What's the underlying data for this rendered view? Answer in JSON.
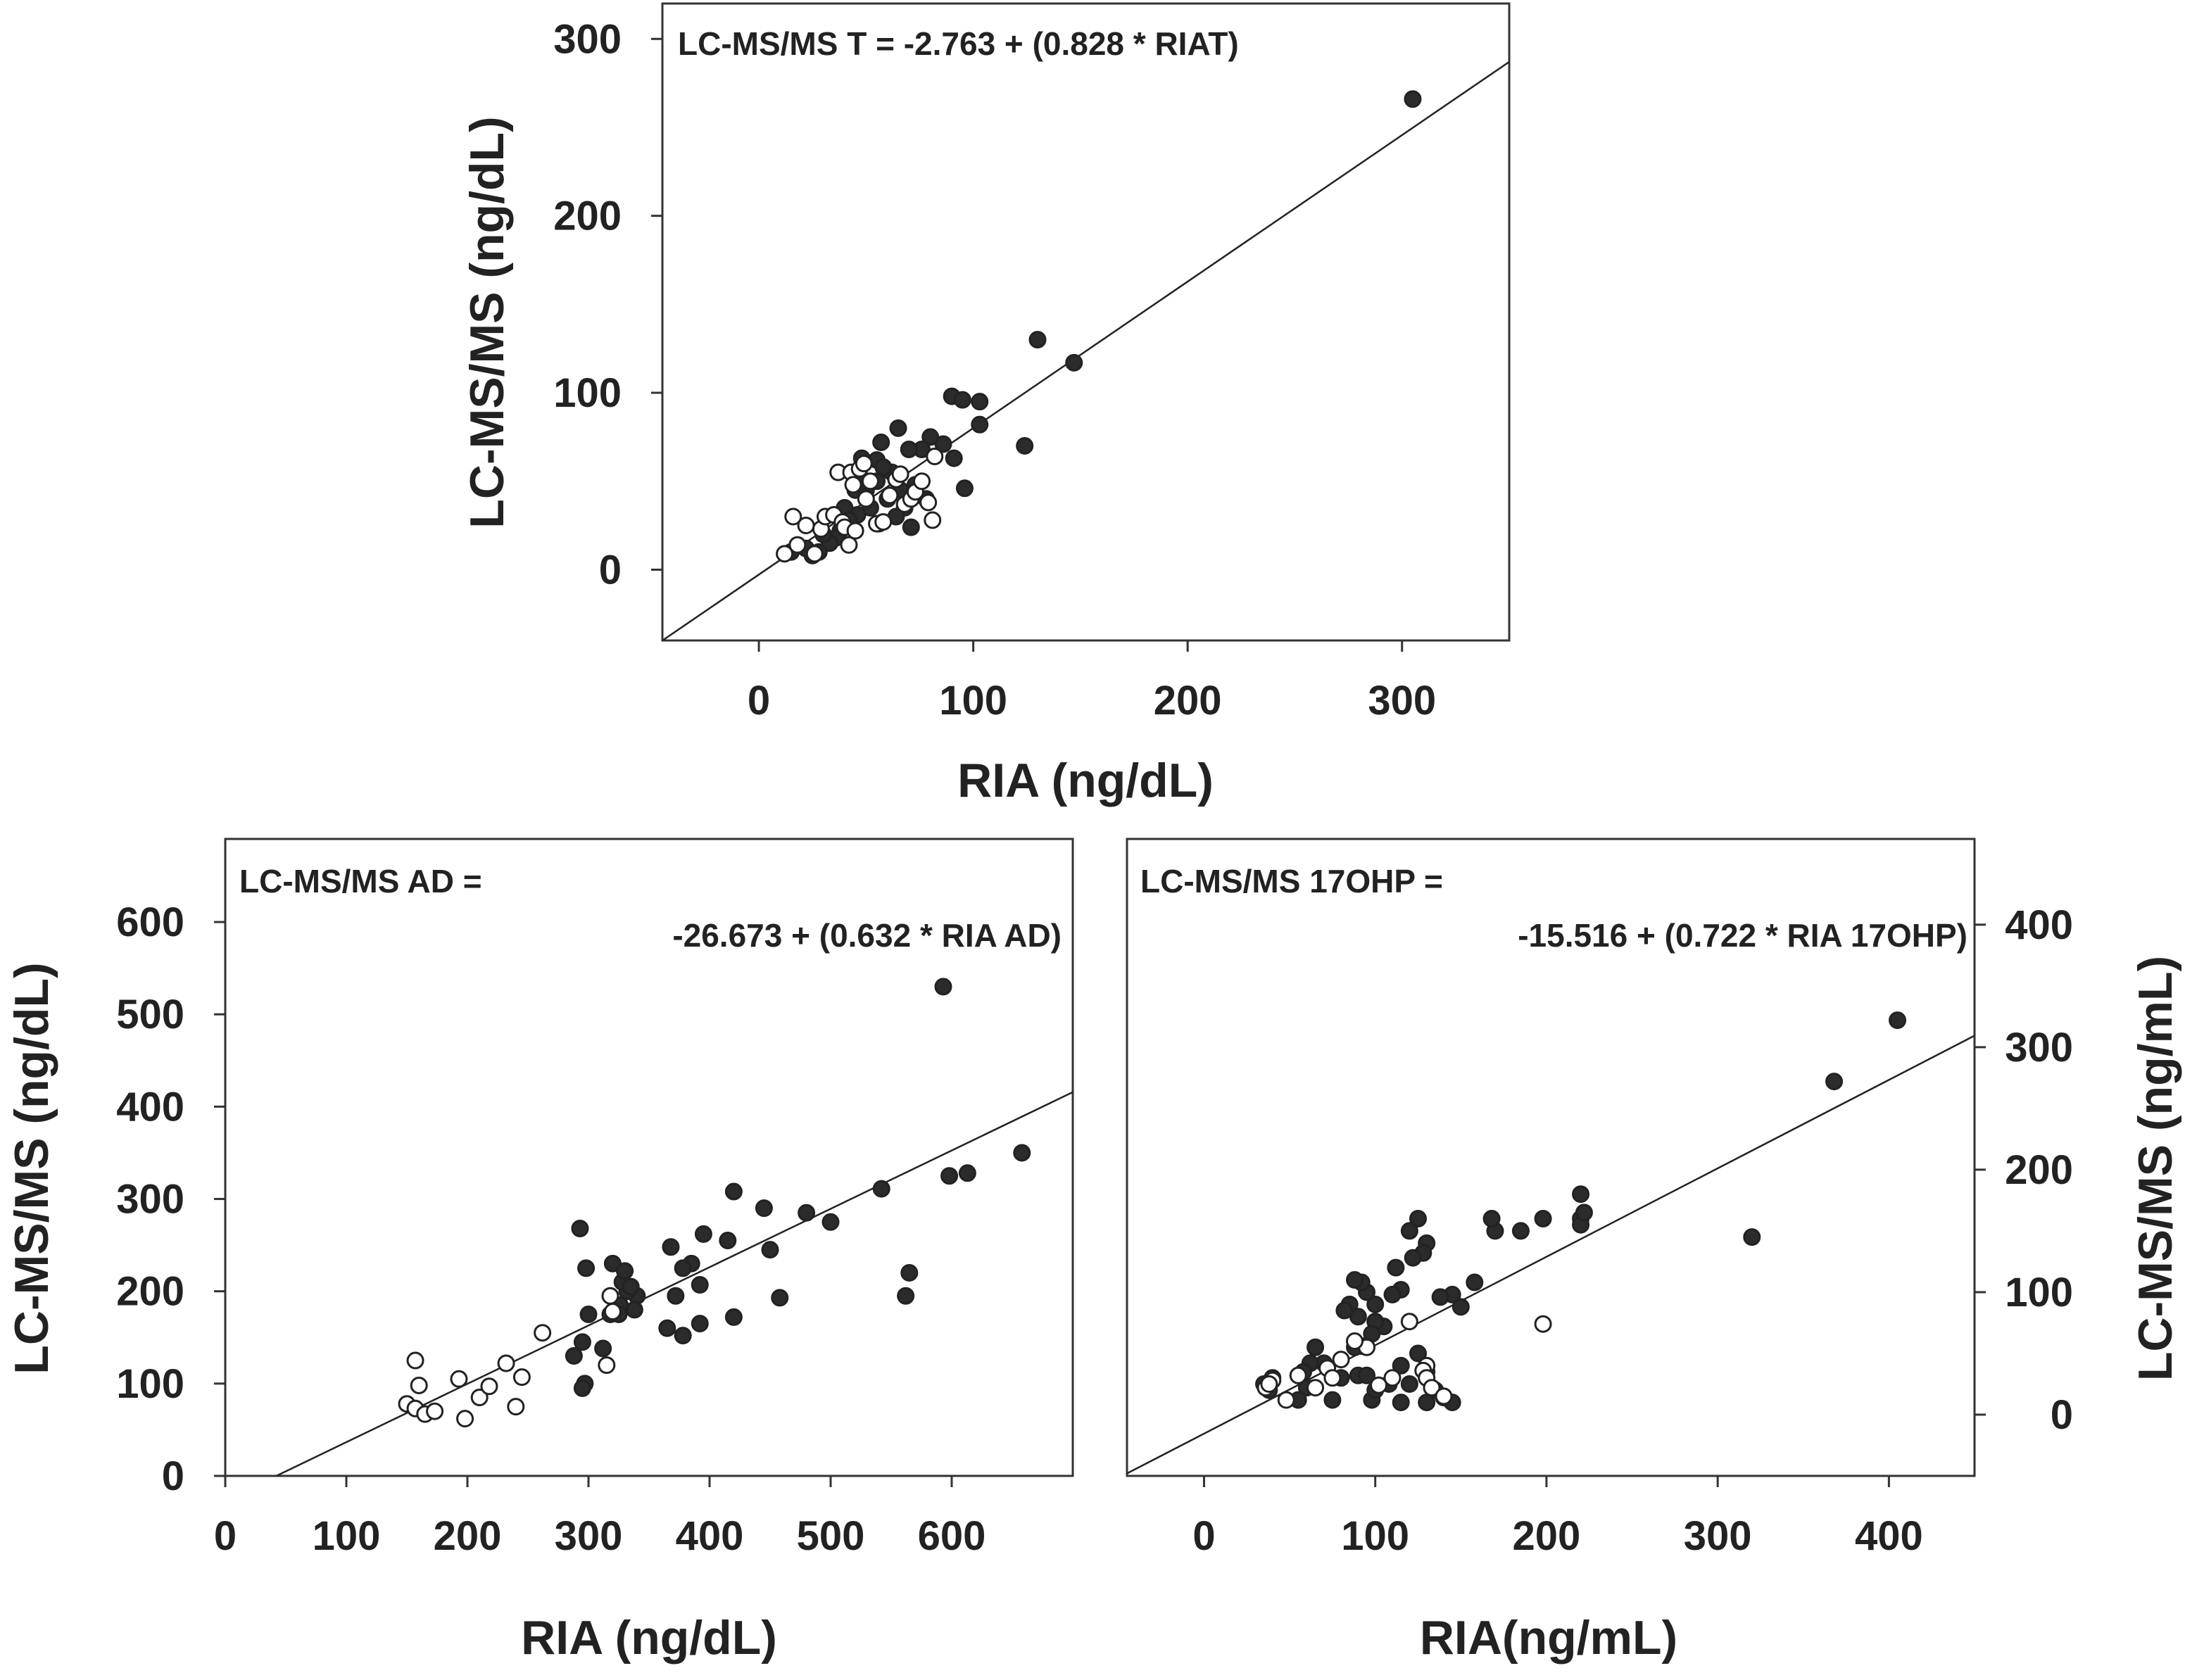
{
  "colors": {
    "filled": "#2b2b2b",
    "open": "#ffffff",
    "line": "#222222"
  },
  "chart_data": [
    {
      "id": "T",
      "type": "scatter",
      "title": "LC-MS/MS T = -2.763 + (0.828 * RIAT)",
      "equation_lines": [
        "LC-MS/MS T = -2.763 + (0.828 * RIAT)"
      ],
      "xlabel": "RIA (ng/dL)",
      "ylabel": "LC-MS/MS (ng/dL)",
      "xlim": [
        -45,
        350
      ],
      "ylim": [
        -40,
        320
      ],
      "xticks": [
        0,
        100,
        200,
        300
      ],
      "yticks": [
        0,
        100,
        200,
        300
      ],
      "yaxis_side": "left",
      "fit": {
        "intercept": -2.763,
        "slope": 0.828
      },
      "series": [
        {
          "name": "filled",
          "style": "filled",
          "points": [
            [
              305,
              266
            ],
            [
              130,
              130
            ],
            [
              147,
              117
            ],
            [
              124,
              70
            ],
            [
              96,
              46
            ],
            [
              90,
              98
            ],
            [
              95,
              96
            ],
            [
              103,
              95
            ],
            [
              103,
              82
            ],
            [
              91,
              63
            ],
            [
              86,
              71
            ],
            [
              80,
              75
            ],
            [
              76,
              68
            ],
            [
              70,
              68
            ],
            [
              65,
              80
            ],
            [
              57,
              72
            ],
            [
              55,
              62
            ],
            [
              48,
              63
            ],
            [
              45,
              45
            ],
            [
              40,
              35
            ],
            [
              50,
              45
            ],
            [
              55,
              50
            ],
            [
              60,
              40
            ],
            [
              62,
              55
            ],
            [
              66,
              45
            ],
            [
              68,
              35
            ],
            [
              71,
              24
            ],
            [
              64,
              30
            ],
            [
              56,
              26
            ],
            [
              52,
              35
            ],
            [
              46,
              31
            ],
            [
              42,
              28
            ],
            [
              38,
              22
            ],
            [
              36,
              18
            ],
            [
              33,
              15
            ],
            [
              28,
              10
            ],
            [
              25,
              8
            ],
            [
              22,
              12
            ],
            [
              15,
              10
            ],
            [
              30,
              20
            ],
            [
              48,
              50
            ],
            [
              58,
              58
            ],
            [
              73,
              48
            ],
            [
              78,
              40
            ]
          ]
        },
        {
          "name": "open",
          "style": "open",
          "points": [
            [
              12,
              9
            ],
            [
              18,
              14
            ],
            [
              16,
              30
            ],
            [
              22,
              25
            ],
            [
              26,
              9
            ],
            [
              29,
              23
            ],
            [
              31,
              30
            ],
            [
              35,
              31
            ],
            [
              37,
              55
            ],
            [
              39,
              27
            ],
            [
              40,
              24
            ],
            [
              42,
              14
            ],
            [
              43,
              55
            ],
            [
              45,
              22
            ],
            [
              47,
              57
            ],
            [
              49,
              60
            ],
            [
              52,
              50
            ],
            [
              55,
              26
            ],
            [
              58,
              27
            ],
            [
              61,
              42
            ],
            [
              64,
              51
            ],
            [
              68,
              37
            ],
            [
              71,
              40
            ],
            [
              73,
              44
            ],
            [
              76,
              50
            ],
            [
              79,
              38
            ],
            [
              81,
              28
            ],
            [
              82,
              64
            ],
            [
              66,
              54
            ],
            [
              44,
              48
            ],
            [
              50,
              40
            ]
          ]
        }
      ]
    },
    {
      "id": "AD",
      "type": "scatter",
      "title": "LC-MS/MS AD = -26.673 + (0.632 * RIA AD)",
      "equation_lines": [
        "LC-MS/MS AD =",
        "-26.673 + (0.632 * RIA AD)"
      ],
      "xlabel": "RIA (ng/dL)",
      "ylabel": "LC-MS/MS (ng/dL)",
      "xlim": [
        0,
        700
      ],
      "ylim": [
        0,
        690
      ],
      "xticks": [
        0,
        100,
        200,
        300,
        400,
        500,
        600
      ],
      "yticks": [
        0,
        100,
        200,
        300,
        400,
        500,
        600
      ],
      "yaxis_side": "left",
      "fit": {
        "intercept": -26.673,
        "slope": 0.632
      },
      "series": [
        {
          "name": "filled",
          "style": "filled",
          "points": [
            [
              593,
              530
            ],
            [
              658,
              350
            ],
            [
              613,
              328
            ],
            [
              598,
              325
            ],
            [
              542,
              311
            ],
            [
              500,
              275
            ],
            [
              480,
              285
            ],
            [
              565,
              220
            ],
            [
              562,
              195
            ],
            [
              445,
              290
            ],
            [
              420,
              308
            ],
            [
              450,
              245
            ],
            [
              415,
              255
            ],
            [
              395,
              262
            ],
            [
              385,
              230
            ],
            [
              378,
              225
            ],
            [
              392,
              207
            ],
            [
              392,
              165
            ],
            [
              378,
              152
            ],
            [
              365,
              160
            ],
            [
              368,
              248
            ],
            [
              372,
              195
            ],
            [
              420,
              172
            ],
            [
              458,
              193
            ],
            [
              340,
              195
            ],
            [
              338,
              180
            ],
            [
              332,
              200
            ],
            [
              328,
              210
            ],
            [
              326,
              185
            ],
            [
              320,
              230
            ],
            [
              318,
              175
            ],
            [
              312,
              138
            ],
            [
              300,
              175
            ],
            [
              298,
              225
            ],
            [
              293,
              268
            ],
            [
              288,
              130
            ],
            [
              295,
              145
            ],
            [
              297,
              100
            ],
            [
              295,
              95
            ],
            [
              330,
              222
            ],
            [
              335,
              205
            ],
            [
              325,
              175
            ]
          ]
        },
        {
          "name": "open",
          "style": "open",
          "points": [
            [
              157,
              125
            ],
            [
              160,
              98
            ],
            [
              150,
              78
            ],
            [
              157,
              73
            ],
            [
              165,
              67
            ],
            [
              173,
              70
            ],
            [
              193,
              105
            ],
            [
              198,
              62
            ],
            [
              210,
              85
            ],
            [
              218,
              97
            ],
            [
              232,
              122
            ],
            [
              240,
              75
            ],
            [
              245,
              107
            ],
            [
              262,
              155
            ],
            [
              315,
              120
            ],
            [
              318,
              195
            ],
            [
              320,
              178
            ]
          ]
        }
      ]
    },
    {
      "id": "17OHP",
      "type": "scatter",
      "title": "LC-MS/MS 17OHP = -15.516 + (0.722 * RIA 17OHP)",
      "equation_lines": [
        "LC-MS/MS 17OHP =",
        "-15.516 + (0.722 * RIA 17OHP)"
      ],
      "xlabel": "RIA(ng/mL)",
      "ylabel": "LC-MS/MS (ng/mL)",
      "xlim": [
        -45,
        450
      ],
      "ylim": [
        -50,
        470
      ],
      "xticks": [
        0,
        100,
        200,
        300,
        400
      ],
      "yticks": [
        0,
        100,
        200,
        300,
        400
      ],
      "yaxis_side": "right",
      "fit": {
        "intercept": -15.516,
        "slope": 0.722
      },
      "series": [
        {
          "name": "filled",
          "style": "filled",
          "points": [
            [
              405,
              322
            ],
            [
              368,
              272
            ],
            [
              320,
              145
            ],
            [
              220,
              180
            ],
            [
              220,
              160
            ],
            [
              220,
              155
            ],
            [
              222,
              165
            ],
            [
              198,
              160
            ],
            [
              185,
              150
            ],
            [
              170,
              150
            ],
            [
              168,
              160
            ],
            [
              158,
              108
            ],
            [
              150,
              88
            ],
            [
              145,
              98
            ],
            [
              138,
              96
            ],
            [
              130,
              140
            ],
            [
              125,
              160
            ],
            [
              128,
              132
            ],
            [
              122,
              128
            ],
            [
              120,
              150
            ],
            [
              115,
              102
            ],
            [
              112,
              120
            ],
            [
              110,
              98
            ],
            [
              105,
              72
            ],
            [
              100,
              90
            ],
            [
              100,
              76
            ],
            [
              98,
              66
            ],
            [
              95,
              100
            ],
            [
              92,
              108
            ],
            [
              90,
              80
            ],
            [
              92,
              56
            ],
            [
              90,
              32
            ],
            [
              88,
              110
            ],
            [
              85,
              90
            ],
            [
              82,
              85
            ],
            [
              95,
              32
            ],
            [
              98,
              12
            ],
            [
              100,
              20
            ],
            [
              108,
              25
            ],
            [
              115,
              40
            ],
            [
              120,
              25
            ],
            [
              130,
              10
            ],
            [
              135,
              20
            ],
            [
              140,
              14
            ],
            [
              145,
              10
            ],
            [
              125,
              50
            ],
            [
              60,
              22
            ],
            [
              55,
              12
            ],
            [
              40,
              30
            ],
            [
              38,
              20
            ],
            [
              35,
              25
            ],
            [
              75,
              12
            ],
            [
              80,
              30
            ],
            [
              88,
              55
            ],
            [
              70,
              42
            ],
            [
              65,
              55
            ],
            [
              62,
              42
            ],
            [
              58,
              35
            ],
            [
              115,
              10
            ],
            [
              130,
              35
            ]
          ]
        },
        {
          "name": "open",
          "style": "open",
          "points": [
            [
              198,
              74
            ],
            [
              120,
              76
            ],
            [
              130,
              40
            ],
            [
              128,
              36
            ],
            [
              130,
              30
            ],
            [
              133,
              22
            ],
            [
              140,
              15
            ],
            [
              110,
              30
            ],
            [
              102,
              24
            ],
            [
              95,
              55
            ],
            [
              88,
              60
            ],
            [
              80,
              45
            ],
            [
              72,
              38
            ],
            [
              75,
              30
            ],
            [
              65,
              22
            ],
            [
              55,
              32
            ],
            [
              48,
              12
            ],
            [
              40,
              28
            ],
            [
              36,
              22
            ],
            [
              38,
              25
            ]
          ]
        }
      ]
    }
  ]
}
